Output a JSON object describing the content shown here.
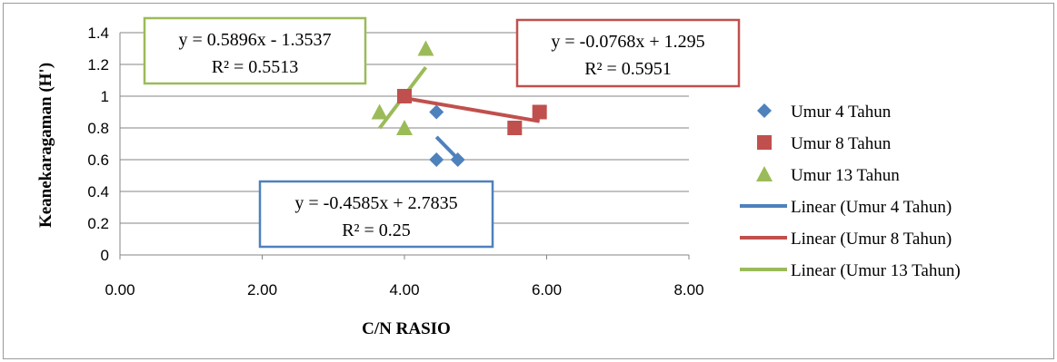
{
  "chart_data": {
    "type": "scatter",
    "xlabel": "C/N RASIO",
    "ylabel": "Keanekaragaman (H')",
    "xlim": [
      0,
      8
    ],
    "ylim": [
      0,
      1.4
    ],
    "x_ticks": [
      "0.00",
      "2.00",
      "4.00",
      "6.00",
      "8.00"
    ],
    "y_ticks": [
      "0",
      "0.2",
      "0.4",
      "0.6",
      "0.8",
      "1",
      "1.2",
      "1.4"
    ],
    "grid": "horizontal",
    "legend_position": "right",
    "series": [
      {
        "name": "Umur 4 Tahun",
        "color": "#4F81BD",
        "marker": "diamond",
        "points": [
          [
            4.45,
            0.9
          ],
          [
            4.45,
            0.6
          ],
          [
            4.75,
            0.6
          ]
        ]
      },
      {
        "name": "Umur 8 Tahun",
        "color": "#C0504D",
        "marker": "square",
        "points": [
          [
            4.0,
            1.0
          ],
          [
            5.55,
            0.8
          ],
          [
            5.9,
            0.9
          ]
        ]
      },
      {
        "name": "Umur 13 Tahun",
        "color": "#9BBB59",
        "marker": "triangle",
        "points": [
          [
            3.65,
            0.9
          ],
          [
            4.0,
            0.8
          ],
          [
            4.3,
            1.3
          ]
        ]
      }
    ],
    "trendlines": [
      {
        "name": "Linear (Umur 4 Tahun)",
        "color": "#4F81BD",
        "x_range": [
          4.45,
          4.75
        ],
        "equation": "y = -0.4585x + 2.7835",
        "r2": "R² = 0.25"
      },
      {
        "name": "Linear (Umur 8 Tahun)",
        "color": "#C0504D",
        "x_range": [
          4.0,
          5.9
        ],
        "equation": "y = -0.0768x + 1.295",
        "r2": "R² = 0.5951"
      },
      {
        "name": "Linear (Umur 13 Tahun)",
        "color": "#9BBB59",
        "x_range": [
          3.65,
          4.3
        ],
        "equation": "y = 0.5896x - 1.3537",
        "r2": "R² = 0.5513"
      }
    ]
  }
}
